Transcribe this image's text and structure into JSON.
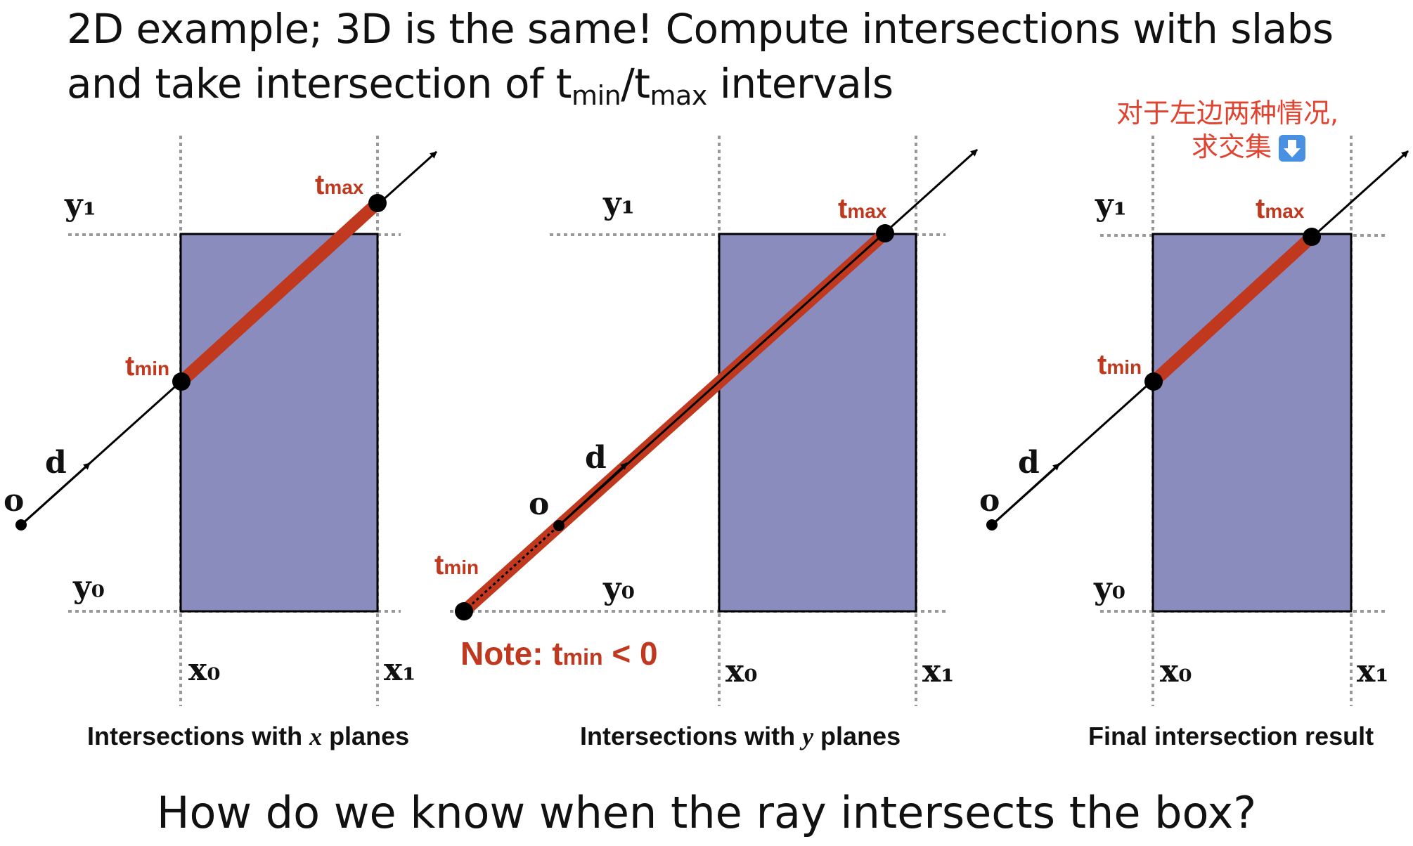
{
  "title": {
    "line1": "2D example; 3D is the same!  Compute intersections with slabs",
    "line2_prefix": "and take intersection of t",
    "min_sub": "min",
    "slash_t": "/t",
    "max_sub": "max",
    "line2_suffix": " intervals"
  },
  "labels": {
    "t": "t",
    "min": "min",
    "max": "max",
    "origin": "o",
    "direction": "d",
    "y1": "y₁",
    "y0": "y₀",
    "x0": "x₀",
    "x1": "x₁"
  },
  "panels": [
    {
      "caption_pre": "Intersections with ",
      "caption_var": "x",
      "caption_post": " planes"
    },
    {
      "caption_pre": "Intersections with ",
      "caption_var": "y",
      "caption_post": " planes"
    },
    {
      "caption_pre": "Final intersection result",
      "caption_var": "",
      "caption_post": ""
    }
  ],
  "note": {
    "prefix": "Note:  ",
    "suffix": " < 0"
  },
  "annotation": {
    "line1": "对于左边两种情况,",
    "line2": "求交集",
    "emoji": "⬇"
  },
  "bottom_question": "How do we know when the ray intersects the box?",
  "colors": {
    "box_fill": "#8a8cbd",
    "segment": "#c0391f",
    "annotation": "#e0432f",
    "emoji_bg": "#4a90e2"
  }
}
